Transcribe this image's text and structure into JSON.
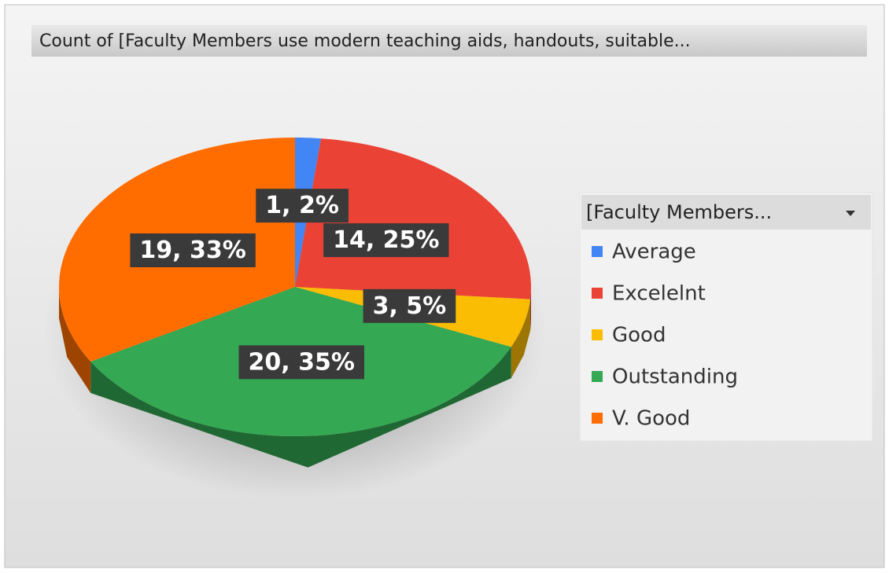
{
  "chart_data": {
    "type": "pie",
    "title": "Count of [Faculty Members use modern teaching aids, handouts, suitable...",
    "legend_title": "[Faculty Members...",
    "categories": [
      "Average",
      "Excelelnt",
      "Good",
      "Outstanding",
      "V. Good"
    ],
    "values": [
      1,
      14,
      3,
      20,
      19
    ],
    "value_labels": [
      "1, 2%",
      "14, 25%",
      "3, 5%",
      "20, 35%",
      "19, 33%"
    ],
    "colors": [
      "#4285f4",
      "#ea4335",
      "#fbbc04",
      "#34a853",
      "#ff6d01"
    ],
    "legend_position": "right"
  }
}
